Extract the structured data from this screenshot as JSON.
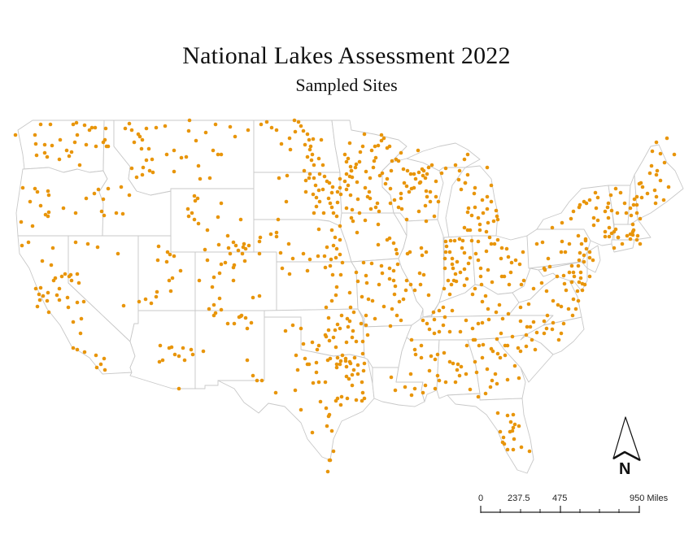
{
  "header": {
    "title": "National Lakes Assessment 2022",
    "subtitle": "Sampled Sites"
  },
  "map": {
    "region": "Contiguous United States",
    "layer": "Sampled Sites",
    "boundary_color": "#c8c8c8",
    "dot_color": "#e8950a",
    "background": "#ffffff"
  },
  "north_arrow": {
    "label": "N"
  },
  "scale_bar": {
    "labels": [
      "0",
      "237.5",
      "475",
      "950 Miles"
    ],
    "units": "Miles",
    "ticks": 9
  }
}
